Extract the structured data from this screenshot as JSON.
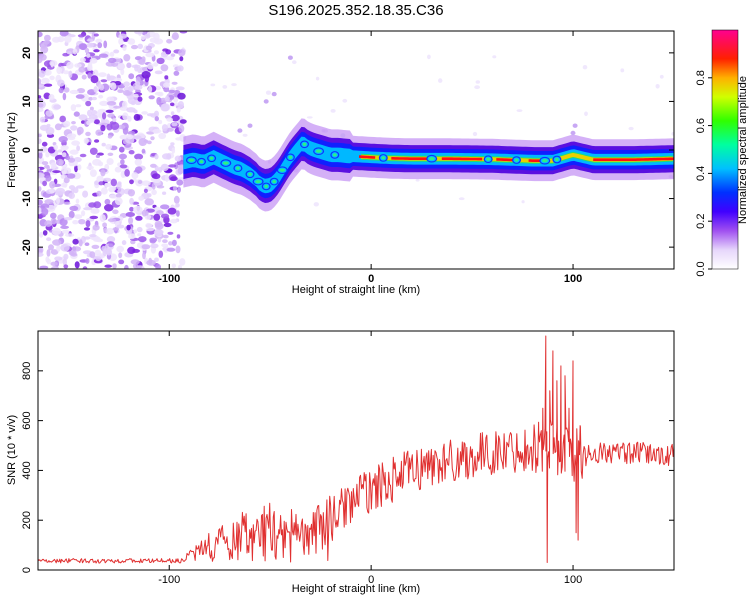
{
  "chart_data": [
    {
      "type": "heatmap",
      "title": "S196.2025.352.18.35.C36",
      "xlabel": "Height of straight line (km)",
      "ylabel": "Frequency (Hz)",
      "xlim": [
        -165,
        150
      ],
      "ylim": [
        -24.5,
        24.5
      ],
      "xticks": [
        -100,
        0,
        100
      ],
      "xtick_labels": [
        "-100",
        "0",
        "100"
      ],
      "yticks": [
        -20,
        -10,
        0,
        10,
        20
      ],
      "ytick_labels": [
        "-20",
        "-10",
        "0",
        "10",
        "20"
      ],
      "ridge": {
        "x": [
          -93,
          -88,
          -83,
          -78,
          -73,
          -68,
          -64,
          -60,
          -57,
          -55,
          -52,
          -49,
          -46,
          -43,
          -40,
          -37,
          -34,
          -31,
          -28,
          -24,
          -20,
          -16,
          -12,
          -8,
          -4,
          0,
          10,
          20,
          40,
          60,
          80,
          90,
          100,
          110,
          130,
          150
        ],
        "y": [
          -2.5,
          -2.0,
          -2.5,
          -1.5,
          -2.5,
          -3.5,
          -4.0,
          -5.0,
          -6.0,
          -7.0,
          -7.5,
          -7.0,
          -5.5,
          -3.5,
          -1.5,
          0.0,
          1.5,
          0.5,
          0.0,
          -0.5,
          -1.0,
          -1.0,
          -1.2,
          -1.3,
          -1.4,
          -1.5,
          -1.7,
          -1.8,
          -1.8,
          -1.9,
          -2.2,
          -2.2,
          -1.0,
          -2.0,
          -2.0,
          -1.8
        ]
      },
      "noise_region_x": [
        -165,
        -93
      ],
      "colorbar": {
        "label": "Normalized spectral amplitude",
        "ticks": [
          0.0,
          0.2,
          0.4,
          0.6,
          0.8
        ],
        "tick_labels": [
          "0.0",
          "0.2",
          "0.4",
          "0.6",
          "0.8"
        ],
        "range": [
          0,
          1
        ],
        "colors": [
          "#ffffff",
          "#c8a0f0",
          "#8a2be2",
          "#0000ff",
          "#00bfff",
          "#00ff7f",
          "#7fff00",
          "#ffff00",
          "#ff8c00",
          "#ff0000",
          "#ff00a0"
        ]
      }
    },
    {
      "type": "line",
      "title": "",
      "xlabel": "Height of straight line (km)",
      "ylabel": "SNR (10 * v/v)",
      "xlim": [
        -165,
        150
      ],
      "ylim": [
        0,
        960
      ],
      "xticks": [
        -100,
        0,
        100
      ],
      "xtick_labels": [
        "-100",
        "0",
        "100"
      ],
      "yticks": [
        0,
        200,
        400,
        600,
        800
      ],
      "ytick_labels": [
        "0",
        "200",
        "400",
        "600",
        "800"
      ],
      "color": "#e03030",
      "envelope": {
        "x": [
          -165,
          -90,
          -80,
          -70,
          -60,
          -50,
          -40,
          -30,
          -20,
          -10,
          0,
          20,
          40,
          60,
          80,
          85,
          90,
          95,
          100,
          105,
          110,
          130,
          150
        ],
        "y": [
          30,
          32,
          80,
          120,
          140,
          150,
          140,
          120,
          200,
          280,
          320,
          400,
          440,
          470,
          490,
          500,
          500,
          480,
          470,
          460,
          470,
          470,
          460
        ]
      },
      "spikes": [
        {
          "x": 83.0,
          "y": 560
        },
        {
          "x": 85.0,
          "y": 650
        },
        {
          "x": 86.5,
          "y": 940
        },
        {
          "x": 87.2,
          "y": 30
        },
        {
          "x": 88.5,
          "y": 720
        },
        {
          "x": 90.0,
          "y": 880
        },
        {
          "x": 92.0,
          "y": 760
        },
        {
          "x": 94.0,
          "y": 820
        },
        {
          "x": 96.0,
          "y": 780
        },
        {
          "x": 98.0,
          "y": 650
        },
        {
          "x": 100.0,
          "y": 840
        },
        {
          "x": 101.5,
          "y": 150
        },
        {
          "x": 102.5,
          "y": 120
        },
        {
          "x": 103.5,
          "y": 580
        }
      ]
    }
  ]
}
